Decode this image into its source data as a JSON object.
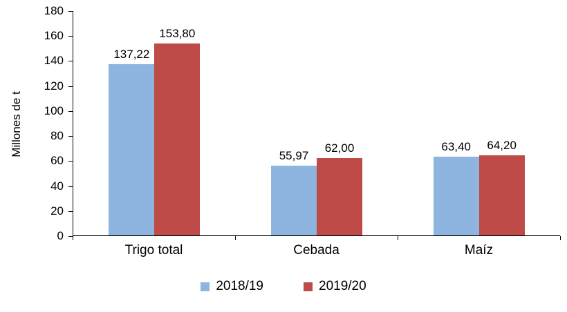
{
  "chart_data": {
    "type": "bar",
    "title": "",
    "ylabel": "Millones de t",
    "ylim": [
      0,
      180
    ],
    "ytick_step": 20,
    "yticks": [
      "0",
      "20",
      "40",
      "60",
      "80",
      "100",
      "120",
      "140",
      "160",
      "180"
    ],
    "grid": false,
    "legend_position": "bottom",
    "categories": [
      "Trigo total",
      "Cebada",
      "Maíz"
    ],
    "series": [
      {
        "name": "2018/19",
        "color": "#8EB4E0",
        "values": [
          137.22,
          55.97,
          63.4
        ],
        "labels": [
          "137,22",
          "55,97",
          "63,40"
        ]
      },
      {
        "name": "2019/20",
        "color": "#BE4B48",
        "values": [
          153.8,
          62.0,
          64.2
        ],
        "labels": [
          "153,80",
          "62,00",
          "64,20"
        ]
      }
    ]
  }
}
